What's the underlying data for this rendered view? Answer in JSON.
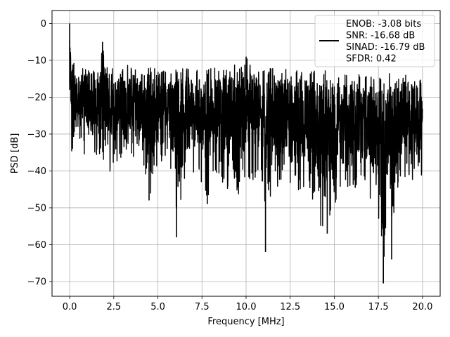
{
  "chart_data": {
    "type": "line",
    "title": "",
    "xlabel": "Frequency [MHz]",
    "ylabel": "PSD [dB]",
    "xlim": [
      -1.0,
      21.0
    ],
    "ylim": [
      -74.0,
      3.5
    ],
    "xticks": [
      0.0,
      2.5,
      5.0,
      7.5,
      10.0,
      12.5,
      15.0,
      17.5,
      20.0
    ],
    "xtick_labels": [
      "0.0",
      "2.5",
      "5.0",
      "7.5",
      "10.0",
      "12.5",
      "15.0",
      "17.5",
      "20.0"
    ],
    "yticks": [
      0,
      -10,
      -20,
      -30,
      -40,
      -50,
      -60,
      -70
    ],
    "ytick_labels": [
      "0",
      "−10",
      "−20",
      "−30",
      "−40",
      "−50",
      "−60",
      "−70"
    ],
    "grid": true,
    "legend_position": "top-right",
    "legend_entries": [
      "ENOB: -3.08 bits",
      "SNR: -16.68 dB",
      "SINAD: -16.79 dB",
      "SFDR: 0.42"
    ],
    "series": [
      {
        "color": "#000000",
        "x": [
          0.0,
          0.05,
          0.1,
          0.2,
          0.3,
          0.5,
          0.7,
          1.0,
          1.3,
          1.6,
          1.86,
          2.0,
          2.4,
          2.5,
          2.9,
          3.3,
          3.8,
          4.2,
          4.5,
          5.0,
          5.5,
          6.0,
          6.06,
          6.5,
          7.0,
          7.5,
          7.8,
          8.2,
          8.8,
          9.5,
          10.0,
          10.5,
          11.0,
          11.1,
          11.5,
          12.0,
          12.4,
          12.5,
          13.0,
          13.5,
          14.0,
          14.6,
          15.0,
          15.5,
          16.0,
          16.5,
          17.0,
          17.5,
          17.78,
          18.0,
          18.25,
          18.5,
          19.0,
          19.5,
          19.9,
          20.0
        ],
        "y_upper": [
          0.0,
          -5.0,
          -8.0,
          -10.0,
          -12.0,
          -13.0,
          -12.0,
          -11.0,
          -12.0,
          -13.0,
          -5.0,
          -12.0,
          -11.0,
          -12.0,
          -13.0,
          -11.0,
          -12.0,
          -13.0,
          -12.0,
          -12.0,
          -13.0,
          -12.0,
          -13.0,
          -12.0,
          -12.0,
          -13.0,
          -12.0,
          -12.0,
          -12.0,
          -11.0,
          -9.0,
          -12.0,
          -13.0,
          -12.0,
          -12.0,
          -13.0,
          -12.0,
          -13.0,
          -12.0,
          -13.0,
          -12.0,
          -13.0,
          -13.0,
          -14.0,
          -13.0,
          -14.0,
          -14.0,
          -13.0,
          -14.0,
          -13.0,
          -13.0,
          -14.0,
          -14.0,
          -14.0,
          -15.0,
          -15.0
        ],
        "y_lower": [
          -26.0,
          -36.0,
          -37.0,
          -41.0,
          -34.0,
          -36.0,
          -35.0,
          -37.0,
          -36.0,
          -37.0,
          -38.0,
          -36.0,
          -42.0,
          -37.0,
          -38.0,
          -37.0,
          -38.0,
          -39.0,
          -48.0,
          -38.0,
          -39.0,
          -40.0,
          -58.0,
          -44.0,
          -41.0,
          -45.0,
          -49.0,
          -43.0,
          -44.0,
          -48.0,
          -44.0,
          -42.0,
          -43.0,
          -62.0,
          -43.0,
          -47.0,
          -41.0,
          -47.0,
          -48.0,
          -43.0,
          -55.0,
          -57.0,
          -50.0,
          -43.0,
          -47.0,
          -43.0,
          -49.0,
          -52.0,
          -70.5,
          -47.0,
          -64.0,
          -48.0,
          -42.0,
          -44.0,
          -45.0,
          -36.0
        ]
      }
    ],
    "notable_points": [
      {
        "x": 0.0,
        "y": 0.0
      },
      {
        "x": 1.86,
        "y": -5.0
      },
      {
        "x": 4.5,
        "y": -48.0
      },
      {
        "x": 6.06,
        "y": -58.0
      },
      {
        "x": 7.8,
        "y": -49.0
      },
      {
        "x": 10.0,
        "y": -9.0
      },
      {
        "x": 11.1,
        "y": -62.0
      },
      {
        "x": 14.6,
        "y": -57.0
      },
      {
        "x": 17.78,
        "y": -70.5
      },
      {
        "x": 18.25,
        "y": -64.0
      }
    ]
  }
}
